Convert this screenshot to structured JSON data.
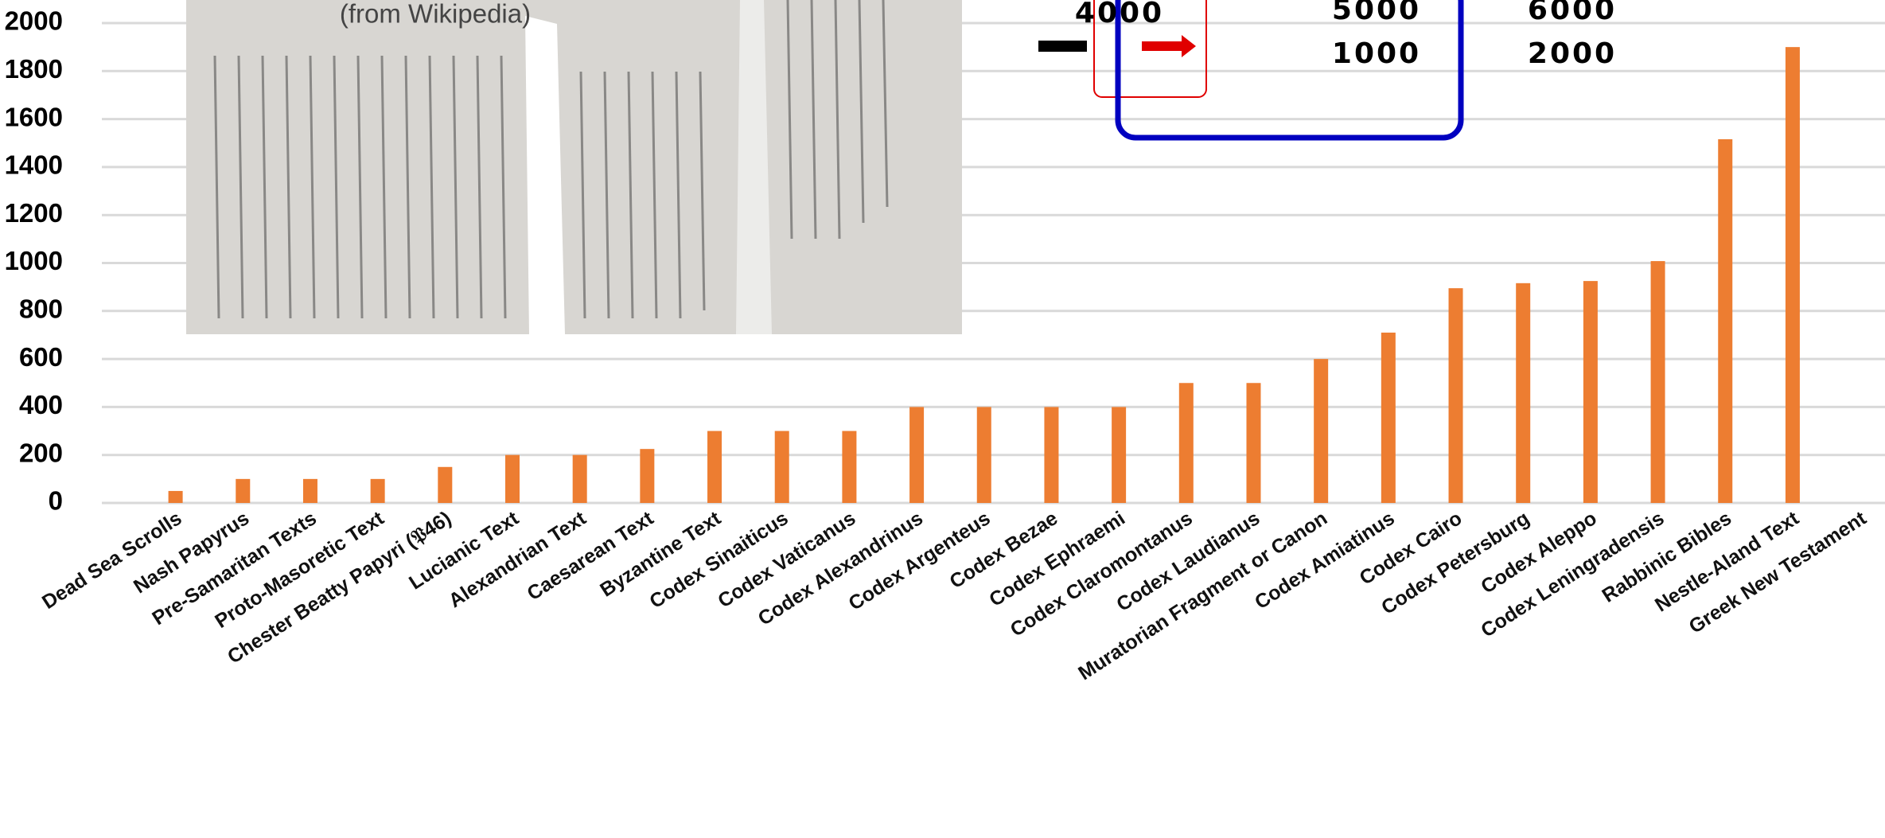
{
  "chart_data": {
    "type": "bar",
    "categories": [
      "Dead Sea Scrolls",
      "Nash Papyrus",
      "Pre-Samaritan Texts",
      "Proto-Masoretic Text",
      "Chester Beatty Papyri (𝔓46)",
      "Lucianic Text",
      "Alexandrian Text",
      "Caesarean Text",
      "Byzantine Text",
      "Codex Sinaiticus",
      "Codex Vaticanus",
      "Codex Alexandrinus",
      "Codex Argenteus",
      "Codex Bezae",
      "Codex Ephraemi",
      "Codex Claromontanus",
      "Codex Laudianus",
      "Muratorian Fragment or Canon",
      "Codex Amiatinus",
      "Codex Cairo",
      "Codex Petersburg",
      "Codex Aleppo",
      "Codex Leningradensis",
      "Rabbinic Bibles",
      "Nestle-Aland Text",
      "Greek New Testament"
    ],
    "values": [
      50,
      100,
      100,
      100,
      150,
      200,
      200,
      225,
      300,
      300,
      300,
      400,
      400,
      400,
      400,
      500,
      500,
      600,
      710,
      895,
      916,
      925,
      1008,
      1516,
      1900,
      null
    ],
    "color": "#ed7d31",
    "ylim": [
      0,
      2000
    ],
    "yticks": [
      0,
      200,
      400,
      600,
      800,
      1000,
      1200,
      1400,
      1600,
      1800,
      2000
    ],
    "grid": true,
    "annotations": [
      "(from Wikipedia)",
      "4000",
      "5000",
      "6000",
      "1000",
      "2000"
    ]
  }
}
